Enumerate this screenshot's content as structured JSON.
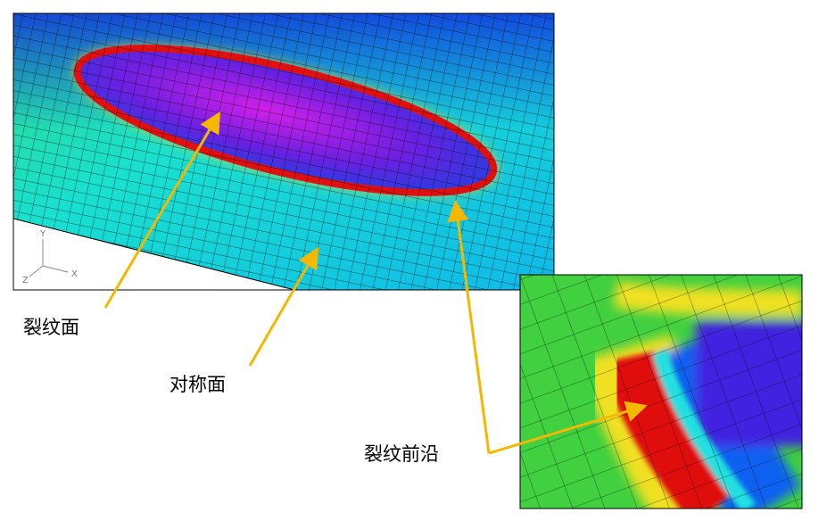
{
  "annotations": {
    "crack_surface": "裂纹面",
    "symmetry_plane": "对称面",
    "crack_front": "裂纹前沿"
  },
  "axes_triad": {
    "y": "Y",
    "x": "X",
    "z": "Z"
  }
}
